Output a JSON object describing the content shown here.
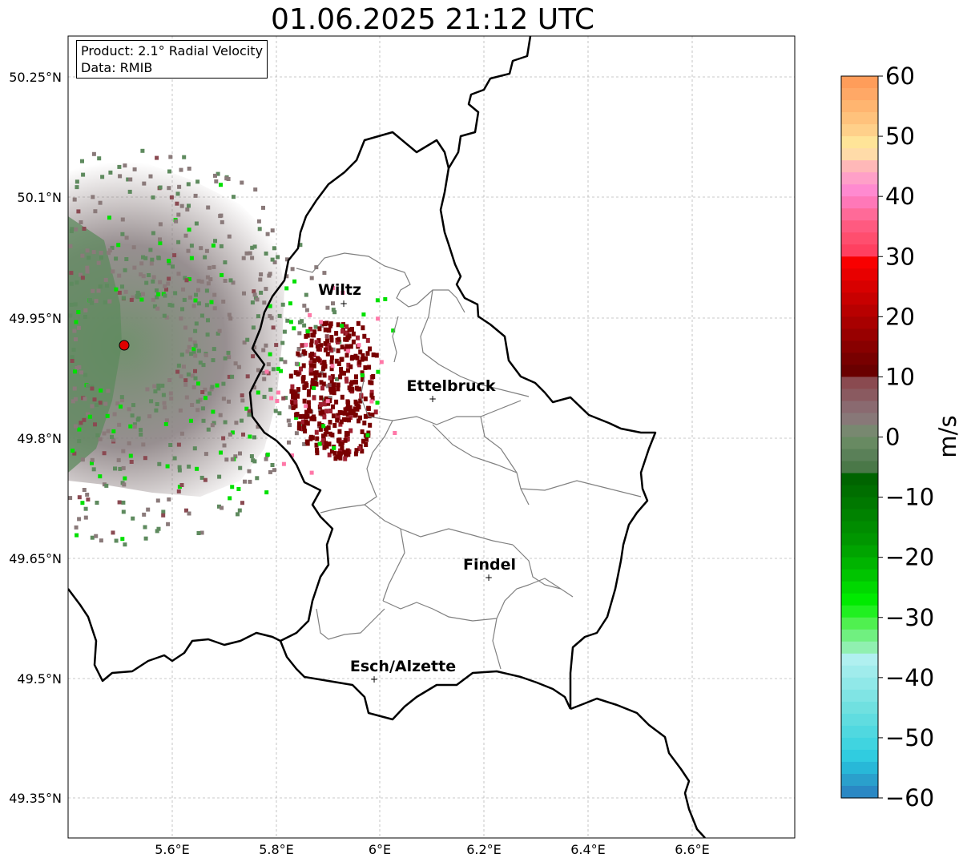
{
  "title": "01.06.2025 21:12 UTC",
  "info": {
    "product": "Product: 2.1° Radial Velocity",
    "data": "Data: RMIB"
  },
  "lat_ticks": [
    "50.25°N",
    "50.1°N",
    "49.95°N",
    "49.8°N",
    "49.65°N",
    "49.5°N",
    "49.35°N"
  ],
  "lon_ticks": [
    "5.6°E",
    "5.8°E",
    "6°E",
    "6.2°E",
    "6.4°E",
    "6.6°E"
  ],
  "cities": [
    {
      "name": "Wiltz",
      "lon": 5.93,
      "lat": 49.968
    },
    {
      "name": "Ettelbruck",
      "lon": 6.1,
      "lat": 49.85
    },
    {
      "name": "Findel",
      "lon": 6.21,
      "lat": 49.627
    },
    {
      "name": "Esch/Alzette",
      "lon": 5.99,
      "lat": 49.5
    }
  ],
  "radar_site": {
    "lon": 5.505,
    "lat": 49.915,
    "color": "#e00000"
  },
  "colorbar": {
    "label": "m/s",
    "min": -60,
    "max": 60,
    "ticks": [
      "60",
      "50",
      "40",
      "30",
      "20",
      "10",
      "0",
      "−10",
      "−20",
      "−30",
      "−40",
      "−50",
      "−60"
    ],
    "colors_top_to_bottom": [
      "#ff9d5a",
      "#ffa866",
      "#ffb570",
      "#ffc27c",
      "#ffd08a",
      "#ffe498",
      "#ffdba8",
      "#ffb8b8",
      "#ffa0c8",
      "#ff8ad0",
      "#ff78b8",
      "#ff6a98",
      "#ff5a80",
      "#ff4e6e",
      "#ff4060",
      "#f80000",
      "#e80000",
      "#d80000",
      "#c80000",
      "#b80000",
      "#a80000",
      "#980000",
      "#880000",
      "#780000",
      "#6a0000",
      "#8a4a50",
      "#8a5a60",
      "#8a6a70",
      "#887878",
      "#788870",
      "#688a62",
      "#5a8058",
      "#4a7848",
      "#006400",
      "#006e00",
      "#007800",
      "#008200",
      "#008c00",
      "#009600",
      "#00a400",
      "#00b400",
      "#00c400",
      "#00d800",
      "#00ea00",
      "#20f020",
      "#50f050",
      "#70f080",
      "#90f0b0",
      "#b0f0f0",
      "#a0ecec",
      "#90e8e8",
      "#80e4e4",
      "#70e0e0",
      "#60dce0",
      "#50d8e0",
      "#40d4e0",
      "#30cce0",
      "#28b8d8",
      "#2aa0cc",
      "#2a88c4"
    ]
  },
  "colors": {
    "receding_dark": "#780000",
    "noise_gray": "#8a7a7a",
    "noise_green": "#5e8a5e",
    "bright_green": "#00e000",
    "border": "#000000",
    "admin_border": "#808080"
  }
}
